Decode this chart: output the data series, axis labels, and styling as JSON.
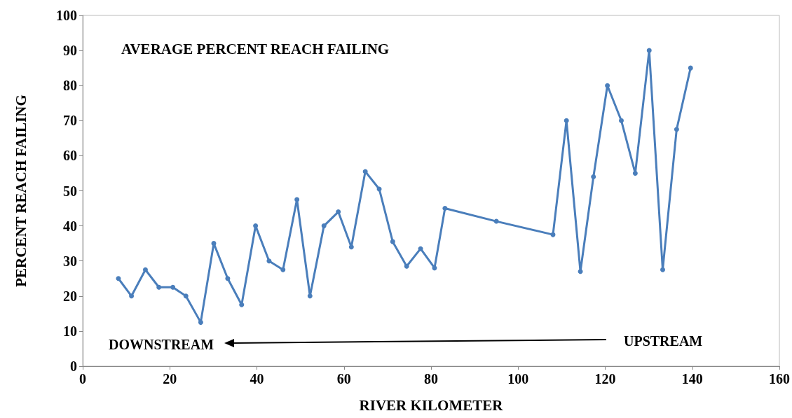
{
  "chart_data": {
    "type": "line",
    "title": "AVERAGE PERCENT REACH FAILING",
    "xlabel": "RIVER KILOMETER",
    "ylabel": "PERCENT REACH FAILING",
    "annotations": [
      "DOWNSTREAM",
      "UPSTREAM"
    ],
    "x": [
      8.2,
      11.2,
      14.4,
      17.5,
      20.7,
      23.7,
      27.1,
      30.1,
      33.3,
      36.5,
      39.7,
      42.8,
      46,
      49.2,
      52.2,
      55.4,
      58.7,
      61.7,
      64.9,
      68.1,
      71.2,
      74.4,
      77.6,
      80.8,
      83.2,
      95,
      108,
      111.1,
      114.3,
      117.3,
      120.5,
      123.7,
      126.9,
      130.1,
      133.2,
      136.4,
      139.6
    ],
    "series": [
      {
        "color": "#4a7ebb",
        "values": [
          25,
          20,
          27.5,
          22.5,
          22.5,
          20,
          12.5,
          35,
          25,
          17.5,
          40,
          30,
          27.5,
          47.5,
          20,
          40,
          44,
          34,
          55.5,
          50.5,
          35.5,
          28.5,
          33.5,
          28,
          45,
          41.3,
          37.5,
          70,
          27,
          54,
          80,
          70,
          55,
          90,
          27.5,
          67.5,
          85
        ]
      }
    ],
    "xlim": [
      0,
      160
    ],
    "xticks": [
      0,
      20,
      40,
      60,
      80,
      100,
      120,
      140,
      160
    ],
    "ylim": [
      0,
      100
    ],
    "yticks": [
      0,
      10,
      20,
      30,
      40,
      50,
      60,
      70,
      80,
      90,
      100
    ],
    "marker": "circle",
    "line_style": "solid",
    "grid": false
  }
}
